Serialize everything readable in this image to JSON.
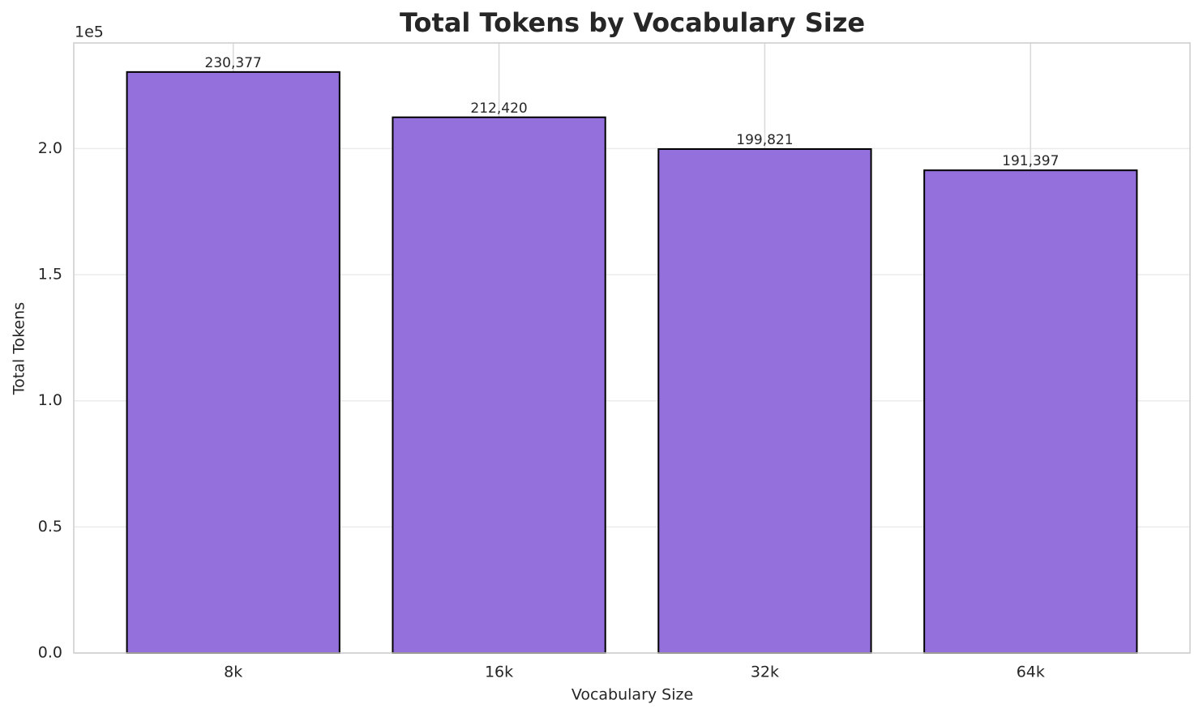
{
  "chart_data": {
    "type": "bar",
    "title": "Total Tokens by Vocabulary Size",
    "x_label": "Vocabulary Size",
    "y_label": "Total Tokens",
    "y_offset_label": "1e5",
    "categories": [
      "8k",
      "16k",
      "32k",
      "64k"
    ],
    "values": [
      230377,
      212420,
      199821,
      191397
    ],
    "value_labels": [
      "230,377",
      "212,420",
      "199,821",
      "191,397"
    ],
    "color": "#9370db",
    "edge_color": "#000000",
    "ylim": [
      0,
      241896
    ],
    "yticks": [
      {
        "value": 0,
        "label": "0.0"
      },
      {
        "value": 50000,
        "label": "0.5"
      },
      {
        "value": 100000,
        "label": "1.0"
      },
      {
        "value": 150000,
        "label": "1.5"
      },
      {
        "value": 200000,
        "label": "2.0"
      }
    ],
    "grid": true
  }
}
